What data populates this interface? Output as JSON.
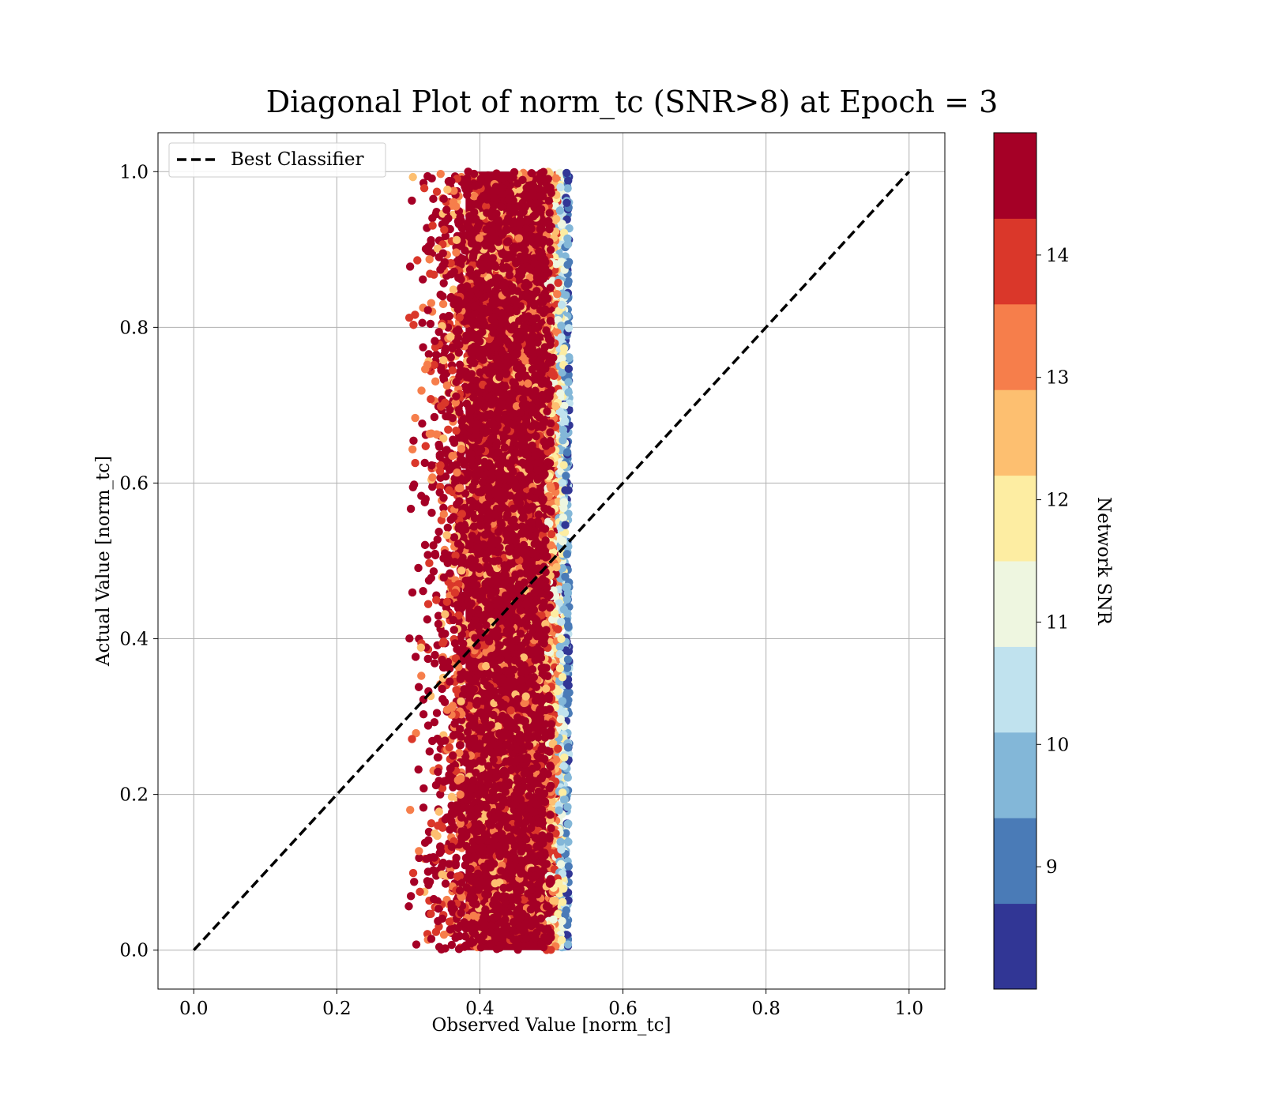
{
  "chart_data": {
    "type": "scatter",
    "title": "Diagonal Plot of norm_tc (SNR>8) at Epoch = 3",
    "xlabel": "Observed Value [norm_tc]",
    "ylabel": "Actual Value [norm_tc]",
    "xlim": [
      -0.05,
      1.05
    ],
    "ylim": [
      -0.05,
      1.05
    ],
    "x_ticks": [
      "0.0",
      "0.2",
      "0.4",
      "0.6",
      "0.8",
      "1.0"
    ],
    "y_ticks": [
      "0.0",
      "0.2",
      "0.4",
      "0.6",
      "0.8",
      "1.0"
    ],
    "grid": true,
    "legend": {
      "placement": "upper-left",
      "entries": [
        "Best Classifier"
      ]
    },
    "reference_line": {
      "name": "Best Classifier",
      "x": [
        0.0,
        1.0
      ],
      "y": [
        0.0,
        1.0
      ],
      "style": "dashed",
      "color": "#000000"
    },
    "scatter_cloud": {
      "x_range": [
        0.3,
        0.525
      ],
      "y_range": [
        0.0,
        1.0
      ],
      "dense_core_x": [
        0.38,
        0.51
      ],
      "description_of_coloring": "points colored by Network SNR; high SNR dominates the core, low SNR along right edge near x≈0.52"
    },
    "colorbar": {
      "label": "Network SNR",
      "range": [
        8,
        15
      ],
      "ticks": [
        "9",
        "10",
        "11",
        "12",
        "13",
        "14"
      ],
      "tick_values": [
        9,
        10,
        11,
        12,
        13,
        14
      ],
      "colors": [
        "#313695",
        "#4575b4",
        "#74add1",
        "#abd9e9",
        "#e0f3f8",
        "#ffffbf",
        "#fee090",
        "#fdae61",
        "#f46d43",
        "#d73027",
        "#a50026"
      ],
      "bands": [
        {
          "from": 8.0,
          "to": 8.7,
          "color": "#313695"
        },
        {
          "from": 8.7,
          "to": 9.4,
          "color": "#4a7bb7"
        },
        {
          "from": 9.4,
          "to": 10.1,
          "color": "#83b7d8"
        },
        {
          "from": 10.1,
          "to": 10.8,
          "color": "#c0e2ee"
        },
        {
          "from": 10.8,
          "to": 11.5,
          "color": "#eef6e0"
        },
        {
          "from": 11.5,
          "to": 12.2,
          "color": "#fdeda2"
        },
        {
          "from": 12.2,
          "to": 12.9,
          "color": "#fdbf70"
        },
        {
          "from": 12.9,
          "to": 13.6,
          "color": "#f67e4b"
        },
        {
          "from": 13.6,
          "to": 14.3,
          "color": "#da372a"
        },
        {
          "from": 14.3,
          "to": 15.0,
          "color": "#a50026"
        }
      ]
    }
  }
}
